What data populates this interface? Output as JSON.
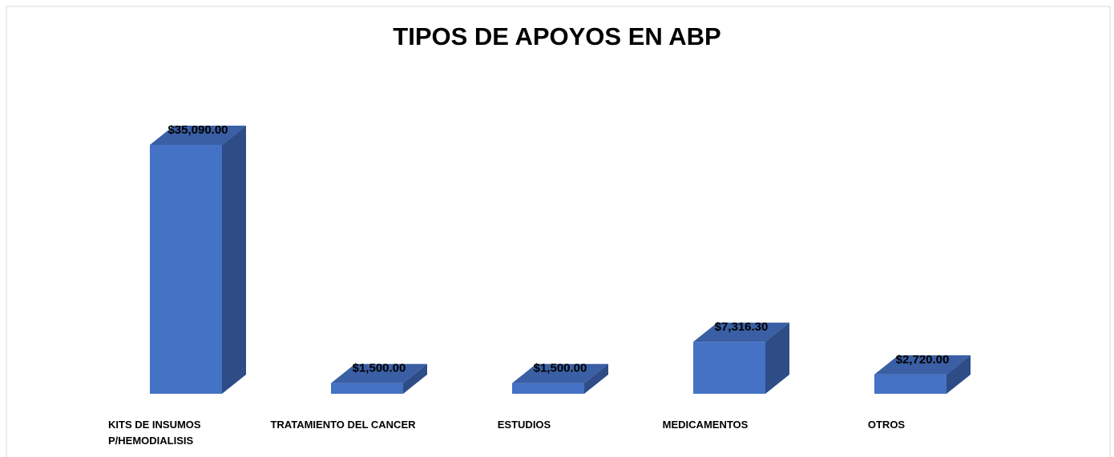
{
  "chart_data": {
    "type": "bar3d",
    "title": "TIPOS DE APOYOS EN ABP",
    "categories": [
      "KITS DE INSUMOS P/HEMODIALISIS",
      "TRATAMIENTO DEL CANCER",
      "ESTUDIOS",
      "MEDICAMENTOS",
      "OTROS"
    ],
    "values": [
      35090,
      1500,
      1500,
      7316.3,
      2720
    ],
    "value_labels": [
      "$35,090.00",
      "$1,500.00",
      "$1,500.00",
      "$7,316.30",
      "$2,720.00"
    ],
    "color": "#4472c4"
  }
}
